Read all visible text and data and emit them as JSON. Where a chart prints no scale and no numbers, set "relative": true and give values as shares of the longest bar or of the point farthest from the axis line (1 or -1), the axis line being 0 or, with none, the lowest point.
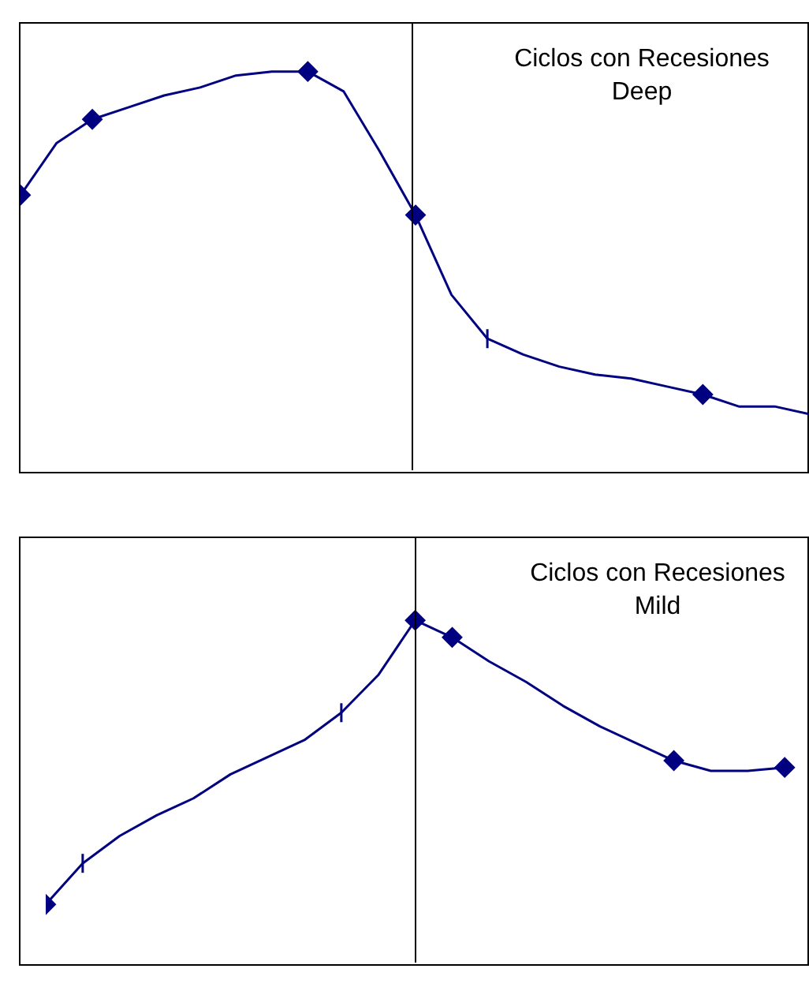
{
  "chart_data": [
    {
      "type": "line",
      "title": "Ciclos con Recesiones Deep",
      "relative": true,
      "categories": [
        null,
        null,
        null,
        null,
        null,
        null,
        null,
        null,
        null,
        null,
        null,
        null,
        null,
        null,
        null,
        null,
        null,
        null,
        null,
        null,
        null,
        null,
        null
      ],
      "series": [
        {
          "color": "#000080",
          "marker": [
            "diamond",
            "none",
            "diamond",
            "none",
            "none",
            "none",
            "none",
            "none",
            "diamond",
            "none",
            "none",
            "diamond",
            "none",
            "cross",
            "none",
            "none",
            "none",
            "none",
            "none",
            "diamond",
            "none",
            "none",
            "cross"
          ],
          "values": [
            0.69,
            0.82,
            0.88,
            0.91,
            0.94,
            0.96,
            0.99,
            1,
            1,
            0.95,
            0.8,
            0.64,
            0.44,
            0.33,
            0.29,
            0.26,
            0.24,
            0.23,
            0.21,
            0.19,
            0.16,
            0.16,
            0.14
          ]
        }
      ]
    },
    {
      "type": "line",
      "title": "Ciclos con Recesiones Mild",
      "relative": true,
      "categories": [
        null,
        null,
        null,
        null,
        null,
        null,
        null,
        null,
        null,
        null,
        null,
        null,
        null,
        null,
        null,
        null,
        null,
        null,
        null,
        null,
        null
      ],
      "series": [
        {
          "color": "#000080",
          "marker": [
            "diamond",
            "cross",
            "none",
            "none",
            "none",
            "none",
            "none",
            "none",
            "cross",
            "none",
            "diamond",
            "diamond",
            "none",
            "none",
            "none",
            "none",
            "none",
            "diamond",
            "none",
            "none",
            "diamond"
          ],
          "values": [
            0.17,
            0.29,
            0.37,
            0.43,
            0.48,
            0.55,
            0.6,
            0.65,
            0.73,
            0.84,
            1,
            0.95,
            0.88,
            0.82,
            0.75,
            0.69,
            0.64,
            0.59,
            0.56,
            0.56,
            0.57
          ]
        }
      ]
    }
  ]
}
